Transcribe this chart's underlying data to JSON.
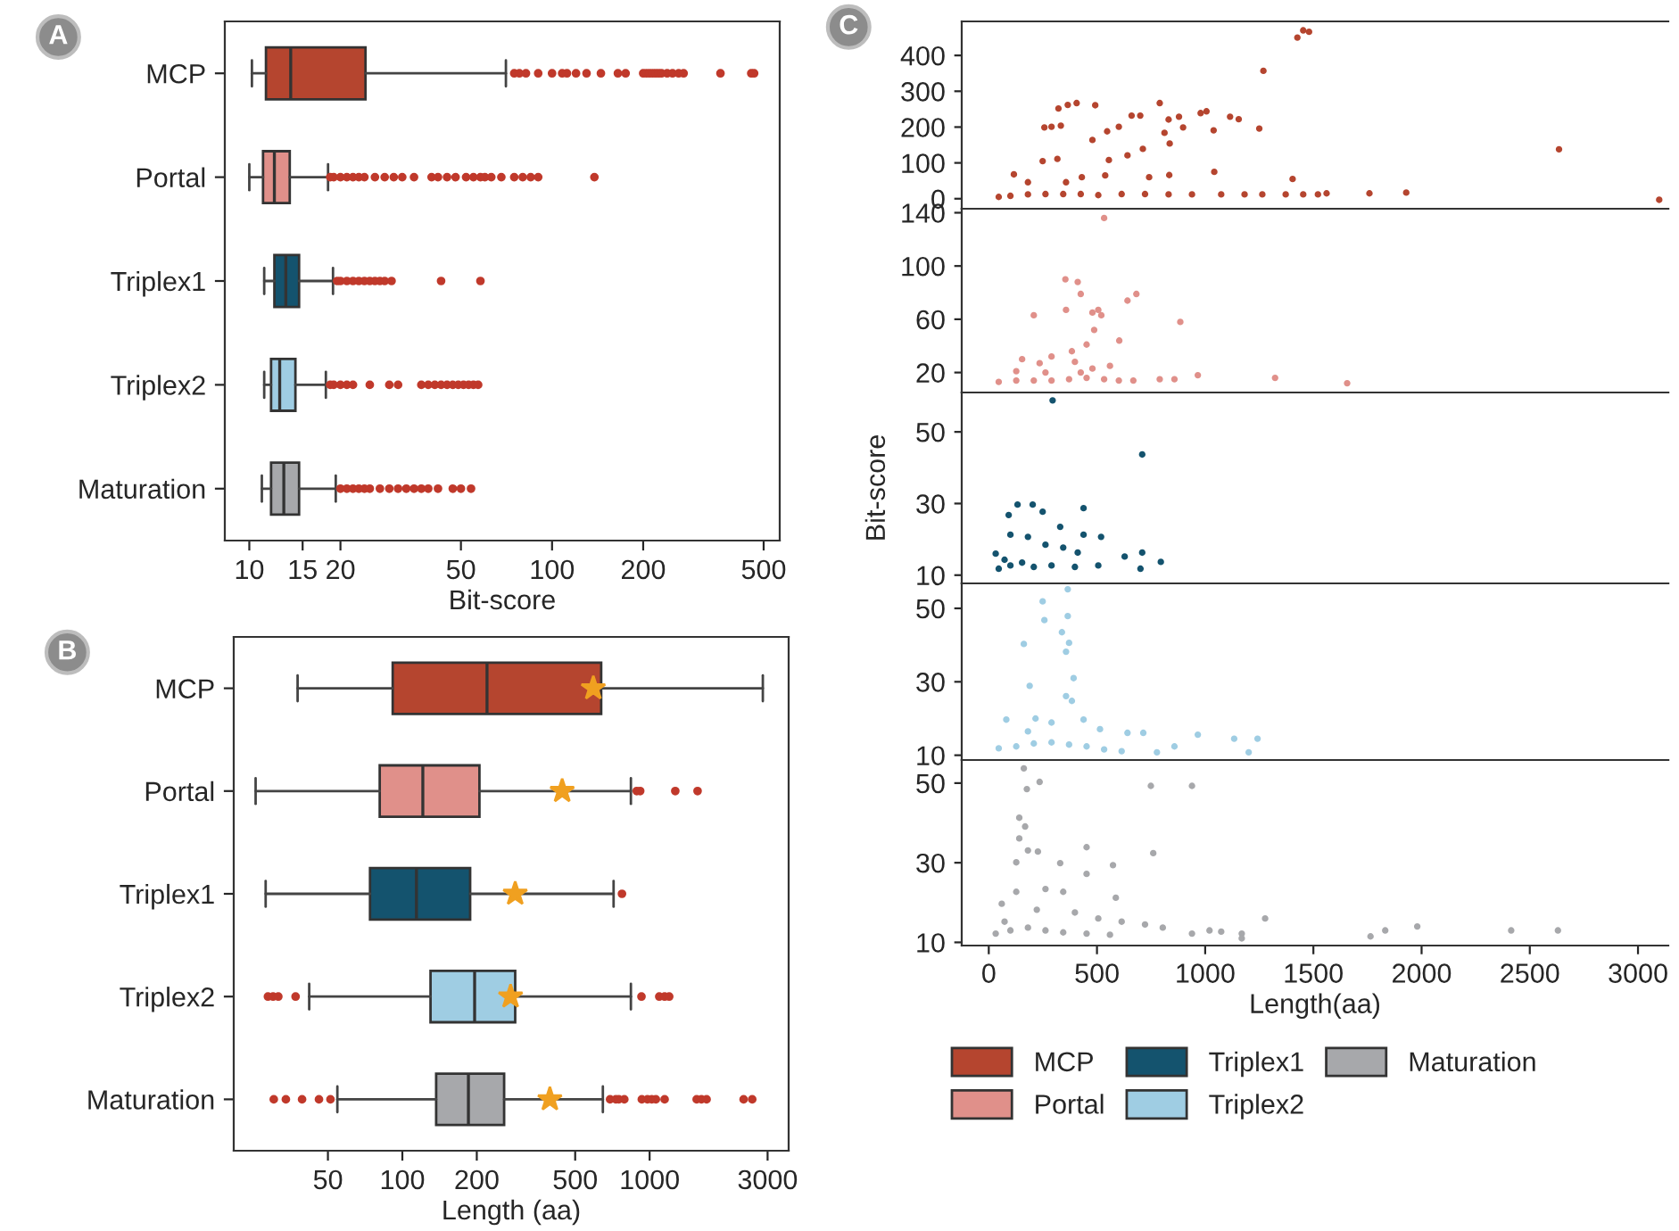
{
  "chart_data": [
    {
      "type": "box",
      "orientation": "horizontal",
      "log": "x",
      "annotations": [
        "A"
      ],
      "xlabel": "Bit-score",
      "categories": [
        "MCP",
        "Portal",
        "Triplex1",
        "Triplex2",
        "Maturation"
      ],
      "colors": [
        "#b5452f",
        "#e0908a",
        "#14536e",
        "#9fcde3",
        "#a7a8ab"
      ],
      "xlim": [
        8.3,
        565
      ],
      "xticks": [
        10,
        15,
        20,
        50,
        100,
        200,
        500
      ],
      "boxes": [
        {
          "low": 10.2,
          "q1": 11.35,
          "median": 13.7,
          "q3": 24.2,
          "high": 70.4,
          "outliers": [
            75,
            78,
            82,
            90,
            100,
            108,
            112,
            120,
            130,
            145,
            165,
            175,
            200,
            205,
            210,
            215,
            220,
            225,
            230,
            240,
            250,
            262,
            272,
            360,
            455,
            465
          ]
        },
        {
          "low": 10.0,
          "q1": 11.1,
          "median": 12.1,
          "q3": 13.6,
          "high": 18.2,
          "outliers": [
            18.5,
            19,
            20,
            21,
            22,
            23,
            24,
            26,
            28,
            30,
            32,
            35,
            40,
            42,
            45,
            48,
            52,
            55,
            58,
            60,
            63,
            68,
            75,
            80,
            85,
            90,
            138
          ]
        },
        {
          "low": 11.2,
          "q1": 12.1,
          "median": 13.2,
          "q3": 14.6,
          "high": 18.9,
          "outliers": [
            19.5,
            20,
            21,
            22,
            23,
            24,
            25,
            26,
            27,
            28,
            29.5,
            43,
            58
          ]
        },
        {
          "low": 11.2,
          "q1": 11.8,
          "median": 12.6,
          "q3": 14.2,
          "high": 17.9,
          "outliers": [
            18.5,
            19,
            20,
            21,
            22,
            25,
            29,
            31,
            37,
            39,
            41,
            43,
            45,
            47,
            49,
            51,
            53,
            55,
            57
          ]
        },
        {
          "low": 11.0,
          "q1": 11.8,
          "median": 13.0,
          "q3": 14.6,
          "high": 19.3,
          "outliers": [
            20,
            21,
            22,
            23,
            24,
            25,
            27,
            29,
            31,
            33,
            35,
            37,
            39,
            42,
            47,
            50,
            54
          ]
        }
      ]
    },
    {
      "type": "box",
      "orientation": "horizontal",
      "log": "x",
      "annotations": [
        "B"
      ],
      "xlabel": "Length (aa)",
      "categories": [
        "MCP",
        "Portal",
        "Triplex1",
        "Triplex2",
        "Maturation"
      ],
      "colors": [
        "#b5452f",
        "#e0908a",
        "#14536e",
        "#9fcde3",
        "#a7a8ab"
      ],
      "xlim": [
        20.8,
        3650
      ],
      "xticks": [
        50,
        100,
        200,
        500,
        1000,
        3000
      ],
      "boxes": [
        {
          "low": 37.7,
          "q1": 91.4,
          "median": 220,
          "q3": 637,
          "high": 2870,
          "mean": 592
        },
        {
          "low": 25.5,
          "q1": 81,
          "median": 121,
          "q3": 205,
          "high": 840,
          "mean": 443,
          "outliers": [
            887,
            916,
            1270,
            1563
          ]
        },
        {
          "low": 28,
          "q1": 74,
          "median": 114,
          "q3": 188,
          "high": 715,
          "mean": 286,
          "outliers": [
            773
          ]
        },
        {
          "low": 42,
          "q1": 130,
          "median": 196,
          "q3": 286,
          "high": 840,
          "mean": 274,
          "outliers": [
            28.6,
            30,
            31.5,
            37,
            927,
            1094,
            1150,
            1200
          ]
        },
        {
          "low": 54.6,
          "q1": 137,
          "median": 185,
          "q3": 258,
          "high": 647,
          "mean": 395,
          "outliers": [
            30.2,
            33.8,
            39.3,
            46,
            51.2,
            692,
            730,
            751,
            790,
            930,
            980,
            1020,
            1060,
            1150,
            1550,
            1620,
            1700,
            2400,
            2600
          ]
        }
      ]
    },
    {
      "type": "scatter",
      "annotations": [
        "C"
      ],
      "tick_labels": "y",
      "xlim": [
        -125,
        3140
      ],
      "xticks": [
        0,
        500,
        1000,
        1500,
        2000,
        2500,
        3000
      ],
      "ylim": [
        -28,
        495
      ],
      "yticks": [
        0,
        100,
        200,
        300,
        400
      ],
      "x": [
        116,
        181,
        257,
        290,
        333,
        322,
        365,
        406,
        492,
        317,
        249,
        357,
        430,
        479,
        538,
        555,
        547,
        601,
        641,
        660,
        700,
        712,
        741,
        790,
        836,
        834,
        812,
        831,
        879,
        898,
        979,
        1006,
        1039,
        1042,
        1115,
        1155,
        1250,
        1269,
        1404,
        1426,
        1453,
        1480,
        2635,
        46,
        100,
        181,
        262,
        344,
        425,
        506,
        614,
        722,
        831,
        939,
        1074,
        1182,
        1264,
        1372,
        1453,
        1521,
        1561,
        1759,
        1929,
        3098
      ],
      "series": [
        {
          "name": "MCP",
          "color": "#b5452f",
          "values": [
            68,
            46,
            199,
            201,
            204,
            252,
            262,
            267,
            261,
            111,
            105,
            46,
            60,
            164,
            65,
            108,
            188,
            201,
            121,
            232,
            232,
            139,
            60,
            267,
            154,
            66,
            184,
            221,
            229,
            199,
            239,
            244,
            191,
            75,
            229,
            222,
            196,
            357,
            55,
            450,
            470,
            466,
            138,
            5,
            8,
            12,
            13,
            13,
            13,
            10,
            13,
            13,
            12,
            12,
            12,
            12,
            12,
            12,
            12,
            12,
            15,
            15,
            17,
            -3
          ]
        }
      ]
    },
    {
      "type": "scatter",
      "tick_labels": "y",
      "xlim": [
        -125,
        3140
      ],
      "xticks": [
        0,
        500,
        1000,
        1500,
        2000,
        2500,
        3000
      ],
      "ylim": [
        5,
        143
      ],
      "yticks": [
        20,
        60,
        100,
        140
      ],
      "x": [
        533,
        208,
        354,
        411,
        425,
        357,
        479,
        506,
        520,
        487,
        452,
        603,
        641,
        682,
        885,
        384,
        398,
        290,
        235,
        154,
        560,
        790,
        858,
        966,
        1323,
        1656,
        46,
        127,
        208,
        290,
        371,
        452,
        533,
        601,
        668,
        127,
        262,
        425,
        479
      ],
      "series": [
        {
          "name": "Portal",
          "color": "#e0908a",
          "values": [
            136,
            63,
            90,
            88,
            79,
            67,
            65,
            67,
            63,
            52,
            41,
            44,
            74,
            79,
            58,
            36,
            28,
            32,
            27,
            30,
            25,
            15,
            15,
            18,
            16,
            12,
            13,
            14,
            14,
            14,
            15,
            16,
            15,
            14,
            14,
            21,
            20,
            20,
            23
          ]
        }
      ]
    },
    {
      "type": "scatter",
      "tick_labels": "y",
      "ylabel": "Bit-score",
      "xlim": [
        -125,
        3140
      ],
      "xticks": [
        0,
        500,
        1000,
        1500,
        2000,
        2500,
        3000
      ],
      "ylim": [
        7.7,
        61
      ],
      "yticks": [
        10,
        30,
        50
      ],
      "x": [
        295,
        709,
        133,
        203,
        249,
        92,
        438,
        330,
        438,
        519,
        100,
        181,
        262,
        344,
        411,
        628,
        709,
        795,
        701,
        506,
        46,
        100,
        154,
        208,
        290,
        398,
        32,
        73
      ],
      "series": [
        {
          "name": "Triplex1",
          "color": "#14536e",
          "values": [
            58.8,
            43.7,
            29.7,
            29.7,
            27.7,
            26.8,
            28.7,
            23.5,
            21.3,
            20.7,
            21.3,
            20.7,
            18.5,
            17.7,
            16.3,
            15.2,
            16.3,
            13.7,
            11.8,
            12.7,
            11.8,
            12.7,
            13.5,
            12.3,
            12.7,
            12.3,
            16,
            14.3
          ]
        }
      ]
    },
    {
      "type": "scatter",
      "tick_labels": "y",
      "xlim": [
        -125,
        3140
      ],
      "xticks": [
        0,
        500,
        1000,
        1500,
        2000,
        2500,
        3000
      ],
      "ylim": [
        8.7,
        56.8
      ],
      "yticks": [
        10,
        30,
        50
      ],
      "x": [
        365,
        249,
        365,
        257,
        338,
        371,
        357,
        162,
        392,
        189,
        357,
        384,
        81,
        216,
        290,
        438,
        514,
        641,
        714,
        966,
        1134,
        1242,
        1201,
        858,
        777,
        614,
        46,
        127,
        208,
        290,
        371,
        452,
        533,
        181
      ],
      "series": [
        {
          "name": "Triplex2",
          "color": "#9fcde3",
          "values": [
            55.2,
            51.9,
            47.9,
            46.8,
            43.5,
            40.6,
            38.2,
            40.3,
            31,
            28.9,
            26.1,
            24.8,
            19.7,
            20,
            18.9,
            19.7,
            17.1,
            16.1,
            16.1,
            15.6,
            14.5,
            14.5,
            10.8,
            12.4,
            10.8,
            11.1,
            11.9,
            12.4,
            13.2,
            13.5,
            12.9,
            12.4,
            11.6,
            16.5
          ]
        }
      ]
    },
    {
      "type": "scatter",
      "xlabel": "Length(aa)",
      "legend": "bottom",
      "xlim": [
        -125,
        3140
      ],
      "xticks": [
        0,
        500,
        1000,
        1500,
        2000,
        2500,
        3000
      ],
      "ylim": [
        9.2,
        55.8
      ],
      "yticks": [
        10,
        30,
        50
      ],
      "x": [
        162,
        176,
        235,
        749,
        939,
        141,
        168,
        141,
        181,
        227,
        127,
        330,
        452,
        452,
        574,
        760,
        262,
        344,
        587,
        60,
        127,
        73,
        222,
        398,
        506,
        614,
        722,
        804,
        939,
        1020,
        1074,
        1169,
        1169,
        1277,
        1764,
        1832,
        1980,
        2414,
        2630,
        32,
        100,
        181,
        262,
        344,
        452,
        560
      ],
      "series": [
        {
          "name": "Maturation",
          "color": "#a7a8ab",
          "values": [
            53.7,
            48.5,
            50.3,
            49.3,
            49.3,
            41.3,
            39.1,
            36.1,
            33.1,
            32.8,
            30.1,
            29.9,
            33.9,
            27.2,
            29.4,
            32.4,
            23.4,
            22.7,
            21.2,
            19.7,
            22.7,
            15.2,
            18.2,
            17.5,
            16,
            15.2,
            14.5,
            13.7,
            12.2,
            13,
            12.7,
            12.2,
            11,
            16,
            11.5,
            13,
            14,
            13,
            13,
            12.2,
            13,
            13.7,
            13,
            12.5,
            12.2,
            11.9
          ]
        }
      ]
    }
  ]
}
